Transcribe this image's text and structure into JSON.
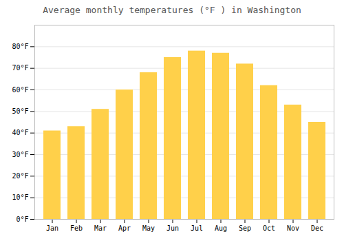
{
  "chart_data": {
    "type": "bar",
    "title": "Average monthly temperatures (°F ) in Washington",
    "categories": [
      "Jan",
      "Feb",
      "Mar",
      "Apr",
      "May",
      "Jun",
      "Jul",
      "Aug",
      "Sep",
      "Oct",
      "Nov",
      "Dec"
    ],
    "values": [
      41,
      43,
      51,
      60,
      68,
      75,
      78,
      77,
      72,
      62,
      53,
      45
    ],
    "color": "#FFD04A",
    "ylim": [
      0,
      90
    ],
    "yticks": [
      {
        "value": 0,
        "label": "0°F"
      },
      {
        "value": 10,
        "label": "10°F"
      },
      {
        "value": 20,
        "label": "20°F"
      },
      {
        "value": 30,
        "label": "30°F"
      },
      {
        "value": 40,
        "label": "40°F"
      },
      {
        "value": 50,
        "label": "50°F"
      },
      {
        "value": 60,
        "label": "60°F"
      },
      {
        "value": 70,
        "label": "70°F"
      },
      {
        "value": 80,
        "label": "80°F"
      }
    ],
    "grid": true
  }
}
